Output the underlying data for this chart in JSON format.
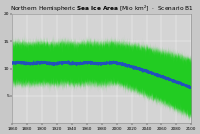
{
  "title_part1": "Northern Hemispheric ",
  "title_bold": "Sea Ice Area",
  "title_part2": " [Mio km²]  ·  Scenario B1",
  "x_start": 1860,
  "x_end": 2100,
  "y_min": 0,
  "y_max": 20,
  "yticks": [
    5,
    10,
    15,
    20
  ],
  "xticks": [
    1860,
    1880,
    1900,
    1920,
    1940,
    1960,
    1980,
    2000,
    2020,
    2040,
    2060,
    2080,
    2100
  ],
  "bg_color": "#c8c8c8",
  "plot_bg_color": "#d4d4d4",
  "band_color": "#22cc22",
  "line_color": "#2244cc",
  "grid_color": "#ffffff"
}
